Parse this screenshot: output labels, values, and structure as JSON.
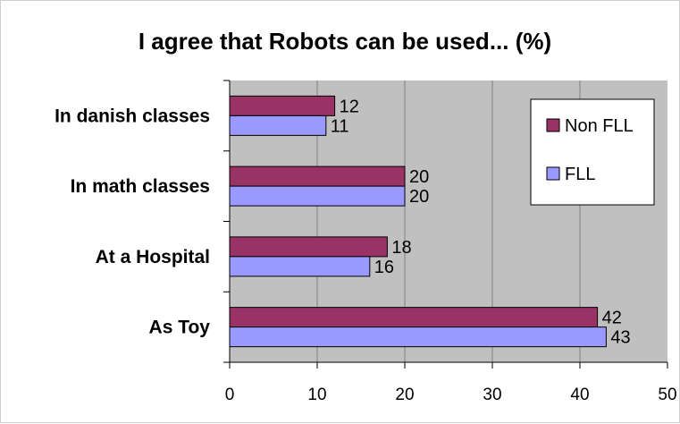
{
  "chart_data": {
    "type": "bar",
    "orientation": "horizontal",
    "title": "I agree that Robots can be used... (%)",
    "xlabel": "",
    "ylabel": "",
    "categories": [
      "In danish classes",
      "In math classes",
      "At a Hospital",
      "As Toy"
    ],
    "series": [
      {
        "name": "Non FLL",
        "values": [
          12,
          20,
          18,
          42
        ],
        "color": "#993366"
      },
      {
        "name": "FLL",
        "values": [
          11,
          20,
          16,
          43
        ],
        "color": "#9999ff"
      }
    ],
    "xlim": [
      0,
      50
    ],
    "xticks": [
      "0",
      "10",
      "20",
      "30",
      "40",
      "50"
    ],
    "grid": true,
    "legend": "top-right",
    "plot_background": "#c0c0c0"
  }
}
